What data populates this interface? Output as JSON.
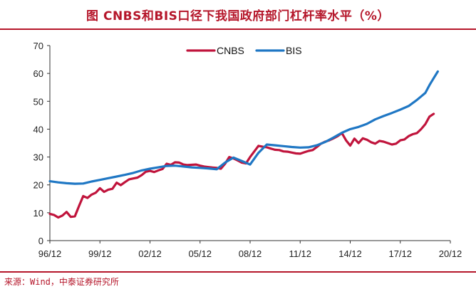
{
  "title": "图  CNBS和BIS口径下我国政府部门杠杆率水平（%）",
  "source": "来源：Wind，中泰证券研究所",
  "colors": {
    "cnbs": "#c0143c",
    "bis": "#1f77c4",
    "accent": "#b5162a"
  },
  "chart_data": {
    "type": "line",
    "title": "",
    "xlabel": "",
    "ylabel": "",
    "ylim": [
      0,
      70
    ],
    "yticks": [
      0,
      10,
      20,
      30,
      40,
      50,
      60,
      70
    ],
    "xrange": [
      0,
      96
    ],
    "xticks": [
      {
        "x": 0,
        "label": "96/12"
      },
      {
        "x": 12,
        "label": "99/12"
      },
      {
        "x": 24,
        "label": "02/12"
      },
      {
        "x": 36,
        "label": "05/12"
      },
      {
        "x": 48,
        "label": "08/12"
      },
      {
        "x": 60,
        "label": "11/12"
      },
      {
        "x": 72,
        "label": "14/12"
      },
      {
        "x": 84,
        "label": "17/12"
      },
      {
        "x": 96,
        "label": "20/12"
      }
    ],
    "grid": false,
    "legend": "top-center",
    "series": [
      {
        "name": "CNBS",
        "color": "#c0143c",
        "points": [
          [
            0,
            9.6
          ],
          [
            1,
            9.2
          ],
          [
            2,
            8.3
          ],
          [
            3,
            9.0
          ],
          [
            4,
            10.3
          ],
          [
            5,
            8.5
          ],
          [
            6,
            8.7
          ],
          [
            7,
            12.5
          ],
          [
            8,
            16.0
          ],
          [
            9,
            15.3
          ],
          [
            10,
            16.5
          ],
          [
            11,
            17.2
          ],
          [
            12,
            18.8
          ],
          [
            13,
            17.5
          ],
          [
            14,
            18.3
          ],
          [
            15,
            18.6
          ],
          [
            16,
            20.8
          ],
          [
            17,
            19.9
          ],
          [
            18,
            21.0
          ],
          [
            19,
            22.0
          ],
          [
            20,
            22.3
          ],
          [
            21,
            22.6
          ],
          [
            22,
            23.5
          ],
          [
            23,
            24.7
          ],
          [
            24,
            25.0
          ],
          [
            25,
            24.6
          ],
          [
            26,
            25.2
          ],
          [
            27,
            25.7
          ],
          [
            28,
            27.6
          ],
          [
            29,
            27.2
          ],
          [
            30,
            28.1
          ],
          [
            31,
            28.0
          ],
          [
            32,
            27.3
          ],
          [
            33,
            27.1
          ],
          [
            34,
            27.2
          ],
          [
            35,
            27.3
          ],
          [
            36,
            26.9
          ],
          [
            37,
            26.6
          ],
          [
            38,
            26.4
          ],
          [
            39,
            26.2
          ],
          [
            40,
            26.1
          ],
          [
            41,
            25.8
          ],
          [
            42,
            27.6
          ],
          [
            43,
            30.0
          ],
          [
            44,
            29.5
          ],
          [
            45,
            28.8
          ],
          [
            46,
            28.0
          ],
          [
            47,
            27.7
          ],
          [
            48,
            30.0
          ],
          [
            49,
            32.0
          ],
          [
            50,
            34.0
          ],
          [
            51,
            33.7
          ],
          [
            52,
            33.5
          ],
          [
            53,
            33.0
          ],
          [
            54,
            32.6
          ],
          [
            55,
            32.5
          ],
          [
            56,
            32.0
          ],
          [
            57,
            31.9
          ],
          [
            58,
            31.6
          ],
          [
            59,
            31.3
          ],
          [
            60,
            31.2
          ],
          [
            61,
            31.7
          ],
          [
            62,
            32.2
          ],
          [
            63,
            32.5
          ],
          [
            64,
            33.6
          ],
          [
            65,
            34.8
          ],
          [
            66,
            35.5
          ],
          [
            67,
            36.0
          ],
          [
            68,
            36.7
          ],
          [
            69,
            37.5
          ],
          [
            70,
            38.6
          ],
          [
            71,
            36.0
          ],
          [
            72,
            34.1
          ],
          [
            73,
            36.6
          ],
          [
            74,
            35.0
          ],
          [
            75,
            36.7
          ],
          [
            76,
            36.2
          ],
          [
            77,
            35.3
          ],
          [
            78,
            34.8
          ],
          [
            79,
            35.8
          ],
          [
            80,
            35.5
          ],
          [
            81,
            35.0
          ],
          [
            82,
            34.5
          ],
          [
            83,
            34.8
          ],
          [
            84,
            36.0
          ],
          [
            85,
            36.3
          ],
          [
            86,
            37.5
          ],
          [
            87,
            38.2
          ],
          [
            88,
            38.6
          ],
          [
            89,
            40.0
          ],
          [
            90,
            41.8
          ],
          [
            91,
            44.5
          ],
          [
            92,
            45.5
          ]
        ]
      },
      {
        "name": "BIS",
        "color": "#1f77c4",
        "points": [
          [
            0,
            21.3
          ],
          [
            2,
            20.9
          ],
          [
            4,
            20.6
          ],
          [
            6,
            20.4
          ],
          [
            8,
            20.5
          ],
          [
            10,
            21.2
          ],
          [
            12,
            21.8
          ],
          [
            14,
            22.4
          ],
          [
            16,
            23.0
          ],
          [
            18,
            23.6
          ],
          [
            20,
            24.3
          ],
          [
            22,
            25.2
          ],
          [
            24,
            25.8
          ],
          [
            26,
            26.3
          ],
          [
            28,
            26.8
          ],
          [
            30,
            26.9
          ],
          [
            32,
            26.6
          ],
          [
            34,
            26.3
          ],
          [
            36,
            26.1
          ],
          [
            38,
            25.9
          ],
          [
            40,
            25.6
          ],
          [
            42,
            28.0
          ],
          [
            44,
            29.8
          ],
          [
            46,
            28.6
          ],
          [
            48,
            27.3
          ],
          [
            50,
            31.5
          ],
          [
            52,
            34.5
          ],
          [
            54,
            34.2
          ],
          [
            56,
            33.9
          ],
          [
            58,
            33.6
          ],
          [
            60,
            33.4
          ],
          [
            62,
            33.5
          ],
          [
            64,
            34.2
          ],
          [
            66,
            35.4
          ],
          [
            68,
            37.0
          ],
          [
            70,
            38.7
          ],
          [
            72,
            40.0
          ],
          [
            74,
            40.8
          ],
          [
            76,
            41.9
          ],
          [
            78,
            43.5
          ],
          [
            80,
            44.7
          ],
          [
            82,
            45.8
          ],
          [
            84,
            47.0
          ],
          [
            86,
            48.3
          ],
          [
            88,
            50.5
          ],
          [
            90,
            53.0
          ],
          [
            91,
            55.8
          ],
          [
            92,
            58.3
          ],
          [
            93,
            60.7
          ]
        ]
      }
    ]
  }
}
